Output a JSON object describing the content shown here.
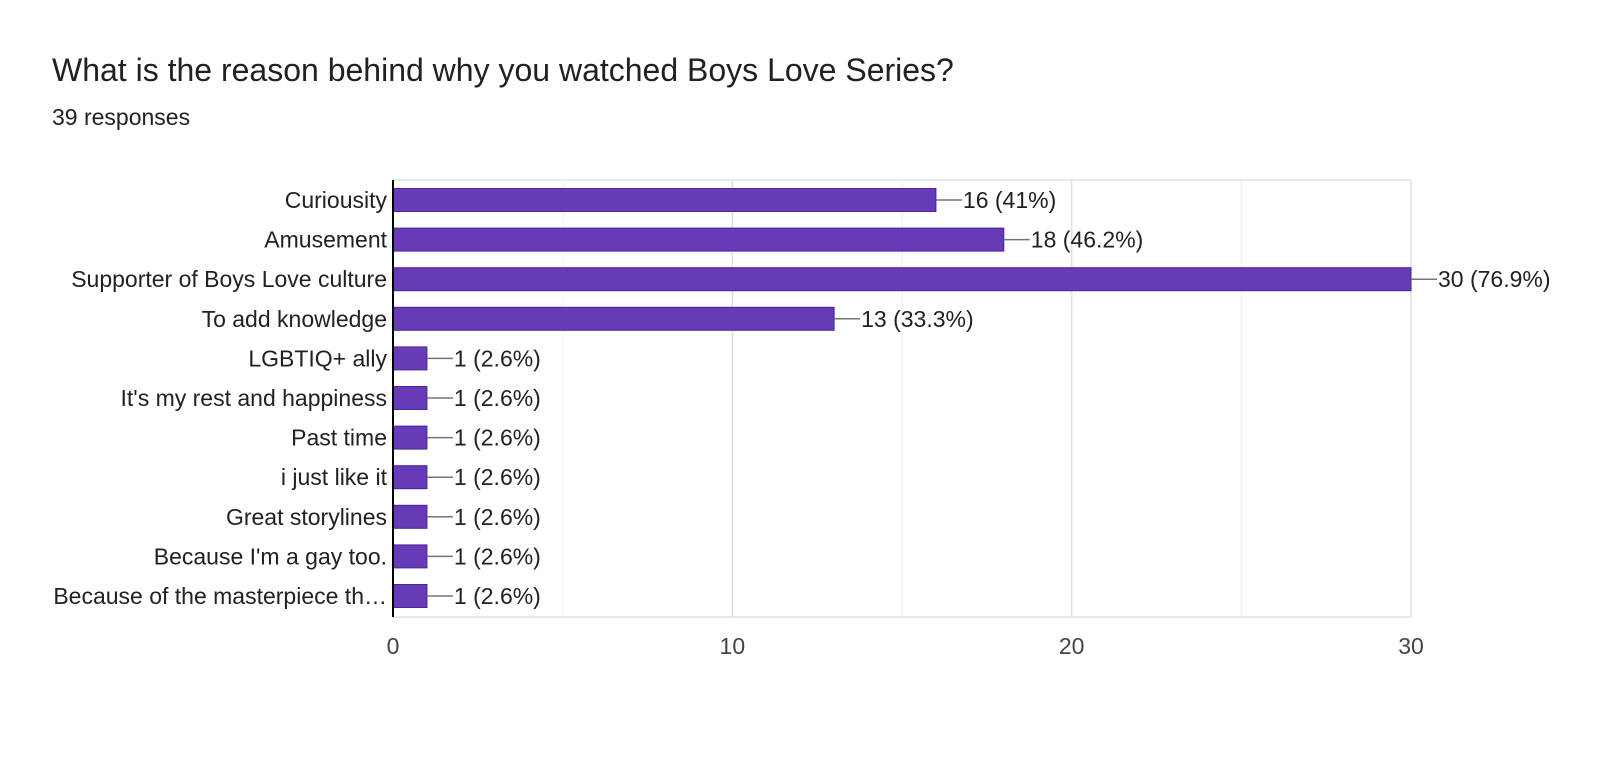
{
  "header": {
    "question_title": "What is the reason behind why you watched Boys Love Series?",
    "response_count": "39 responses"
  },
  "colors": {
    "bar": "#673ab7",
    "bar_border": "#4527a0",
    "grid": "#e0e0e0",
    "axis": "#000000",
    "leader": "#757575",
    "text": "#202124",
    "tick_text": "#444444"
  },
  "chart_data": {
    "type": "bar",
    "orientation": "horizontal",
    "categories": [
      "Curiousity",
      "Amusement",
      "Supporter of Boys Love culture",
      "To add knowledge",
      "LGBTIQ+ ally",
      "It's my rest and happiness",
      "Past time",
      "i just like it",
      "Great storylines",
      "Because I'm a gay too.",
      "Because of the masterpiece th…"
    ],
    "values": [
      16,
      18,
      30,
      13,
      1,
      1,
      1,
      1,
      1,
      1,
      1
    ],
    "value_labels": [
      "16 (41%)",
      "18 (46.2%)",
      "30 (76.9%)",
      "13 (33.3%)",
      "1 (2.6%)",
      "1 (2.6%)",
      "1 (2.6%)",
      "1 (2.6%)",
      "1 (2.6%)",
      "1 (2.6%)",
      "1 (2.6%)"
    ],
    "xlim": [
      0,
      30
    ],
    "xticks": [
      0,
      10,
      20,
      30
    ],
    "xtick_labels": [
      "0",
      "10",
      "20",
      "30"
    ],
    "minor_gridlines": [
      5,
      15,
      25
    ],
    "grid": true,
    "legend": "none"
  }
}
